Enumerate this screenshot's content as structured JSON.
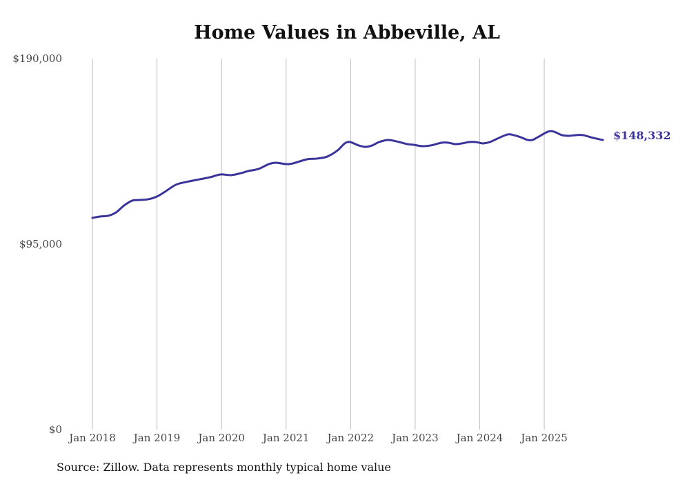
{
  "chart_data": {
    "type": "line",
    "title": "Home Values in Abbeville, AL",
    "source": "Source: Zillow. Data represents monthly typical home value",
    "xlabel": "",
    "ylabel": "",
    "x_unit": "months since Jan 2018",
    "xlim": [
      0,
      95
    ],
    "ylim": [
      0,
      190000
    ],
    "x_ticks": [
      {
        "month": 0,
        "label": "Jan 2018"
      },
      {
        "month": 12,
        "label": "Jan 2019"
      },
      {
        "month": 24,
        "label": "Jan 2020"
      },
      {
        "month": 36,
        "label": "Jan 2021"
      },
      {
        "month": 48,
        "label": "Jan 2022"
      },
      {
        "month": 60,
        "label": "Jan 2023"
      },
      {
        "month": 72,
        "label": "Jan 2024"
      },
      {
        "month": 84,
        "label": "Jan 2025"
      }
    ],
    "y_ticks": [
      {
        "value": 190000,
        "label": "$190,000"
      },
      {
        "value": 95000,
        "label": "$95,000"
      },
      {
        "value": 0,
        "label": "$0"
      }
    ],
    "grid": "vertical",
    "series": [
      {
        "name": "Typical home value",
        "color": "#3a339a",
        "end_label": "$148,332",
        "points": [
          [
            0,
            108430
          ],
          [
            1.4,
            109140
          ],
          [
            2.9,
            109490
          ],
          [
            4.4,
            111260
          ],
          [
            5.9,
            114790
          ],
          [
            7.4,
            117260
          ],
          [
            8.8,
            117620
          ],
          [
            10.4,
            117970
          ],
          [
            12,
            119380
          ],
          [
            13.5,
            121850
          ],
          [
            15.5,
            125390
          ],
          [
            17.4,
            126800
          ],
          [
            20,
            128210
          ],
          [
            21.9,
            129270
          ],
          [
            23.8,
            130680
          ],
          [
            25.8,
            130330
          ],
          [
            27.7,
            131390
          ],
          [
            29,
            132450
          ],
          [
            30.9,
            133510
          ],
          [
            32.8,
            135980
          ],
          [
            34.1,
            136690
          ],
          [
            36,
            135980
          ],
          [
            37.3,
            136340
          ],
          [
            39.9,
            138450
          ],
          [
            41.8,
            138810
          ],
          [
            43.7,
            139870
          ],
          [
            45.6,
            143050
          ],
          [
            46.9,
            146580
          ],
          [
            47.9,
            147280
          ],
          [
            49.5,
            145520
          ],
          [
            50.8,
            144810
          ],
          [
            52,
            145520
          ],
          [
            53.3,
            147280
          ],
          [
            54.9,
            148340
          ],
          [
            56.5,
            147640
          ],
          [
            58.5,
            146220
          ],
          [
            59.7,
            145870
          ],
          [
            61.3,
            145170
          ],
          [
            62.9,
            145520
          ],
          [
            64.9,
            146930
          ],
          [
            66.2,
            146930
          ],
          [
            67.4,
            146220
          ],
          [
            68.7,
            146580
          ],
          [
            70,
            147280
          ],
          [
            71.3,
            147280
          ],
          [
            72.6,
            146580
          ],
          [
            73.9,
            147280
          ],
          [
            75.3,
            149050
          ],
          [
            77.2,
            151170
          ],
          [
            78.3,
            150820
          ],
          [
            79.6,
            149760
          ],
          [
            80.9,
            148340
          ],
          [
            81.8,
            148340
          ],
          [
            82.8,
            149760
          ],
          [
            84.7,
            152580
          ],
          [
            85.8,
            152580
          ],
          [
            87.3,
            150820
          ],
          [
            88.6,
            150460
          ],
          [
            89.9,
            150820
          ],
          [
            91.2,
            150820
          ],
          [
            93.1,
            149400
          ],
          [
            94.9,
            148332
          ]
        ]
      }
    ]
  }
}
